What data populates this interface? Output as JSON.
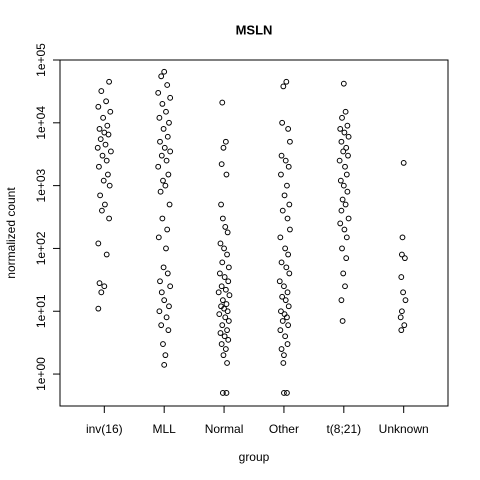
{
  "chart_data": {
    "type": "scatter",
    "title": "MSLN",
    "xlabel": "group",
    "ylabel": "normalized count",
    "log_y": true,
    "xlim": [
      0.26,
      6.74
    ],
    "xticks": [
      {
        "value": 1,
        "label": "inv(16)"
      },
      {
        "value": 2,
        "label": "MLL"
      },
      {
        "value": 3,
        "label": "Normal"
      },
      {
        "value": 4,
        "label": "Other"
      },
      {
        "value": 5,
        "label": "t(8;21)"
      },
      {
        "value": 6,
        "label": "Unknown"
      }
    ],
    "ylim": [
      0.31,
      100000
    ],
    "yticks": [
      {
        "value": 1,
        "label": "1e+00"
      },
      {
        "value": 10,
        "label": "1e+01"
      },
      {
        "value": 100,
        "label": "1e+02"
      },
      {
        "value": 1000,
        "label": "1e+03"
      },
      {
        "value": 10000,
        "label": "1e+04"
      },
      {
        "value": 100000,
        "label": "1e+05"
      }
    ],
    "color": "#000000",
    "x": [
      1.08,
      0.95,
      1.03,
      0.9,
      1.1,
      0.98,
      1.05,
      0.92,
      1.0,
      1.07,
      0.94,
      1.02,
      0.89,
      1.11,
      0.97,
      1.04,
      0.91,
      1.06,
      0.99,
      1.09,
      0.93,
      1.01,
      0.96,
      1.08,
      0.9,
      1.04,
      0.92,
      1.0,
      0.95,
      0.9,
      2.0,
      1.95,
      2.05,
      1.9,
      2.1,
      1.97,
      2.03,
      1.92,
      2.08,
      1.99,
      2.06,
      1.93,
      2.01,
      2.1,
      1.96,
      2.04,
      1.9,
      2.07,
      1.98,
      2.02,
      1.94,
      2.09,
      1.97,
      2.05,
      1.91,
      2.03,
      1.99,
      2.06,
      1.93,
      2.1,
      1.96,
      2.0,
      2.08,
      1.92,
      2.04,
      1.95,
      2.07,
      1.98,
      2.02,
      2.0,
      2.97,
      3.03,
      2.99,
      2.96,
      3.04,
      2.95,
      2.98,
      3.02,
      3.06,
      2.94,
      3.0,
      3.05,
      2.97,
      3.08,
      2.93,
      3.01,
      3.07,
      2.96,
      3.03,
      2.91,
      3.09,
      2.98,
      3.04,
      2.95,
      3.0,
      3.06,
      2.92,
      3.02,
      3.08,
      2.97,
      3.05,
      2.94,
      3.01,
      3.07,
      2.96,
      3.03,
      2.99,
      3.05,
      2.98,
      3.04,
      4.04,
      3.99,
      3.97,
      4.07,
      4.1,
      3.96,
      4.03,
      4.08,
      3.95,
      4.05,
      4.01,
      4.09,
      3.98,
      4.06,
      4.1,
      3.94,
      4.02,
      4.07,
      3.96,
      4.04,
      4.09,
      3.93,
      4.0,
      4.06,
      3.97,
      4.03,
      4.08,
      3.95,
      4.01,
      4.05,
      3.98,
      4.07,
      3.94,
      4.02,
      4.06,
      3.96,
      4.0,
      3.99,
      4.0,
      4.05,
      5.0,
      5.03,
      4.97,
      5.06,
      4.94,
      5.01,
      5.08,
      4.96,
      5.04,
      4.99,
      5.07,
      4.93,
      5.02,
      5.05,
      4.95,
      5.0,
      5.06,
      4.98,
      5.03,
      4.96,
      5.08,
      4.94,
      5.01,
      5.05,
      4.97,
      5.04,
      4.99,
      5.02,
      4.96,
      4.98,
      6.0,
      5.98,
      5.97,
      6.02,
      5.96,
      5.99,
      6.03,
      5.97,
      5.95,
      6.01,
      5.96
    ],
    "values": [
      45000,
      32000,
      22000,
      18000,
      15000,
      12000,
      9000,
      8000,
      7000,
      6500,
      5500,
      4500,
      4000,
      3500,
      3000,
      2500,
      2000,
      1500,
      1200,
      1000,
      700,
      500,
      400,
      300,
      120,
      80,
      28,
      25,
      20,
      11,
      65000,
      55000,
      40000,
      30000,
      25000,
      20000,
      15000,
      12000,
      10000,
      8000,
      6000,
      5000,
      4000,
      3500,
      3000,
      2500,
      2000,
      1500,
      1200,
      1000,
      800,
      500,
      300,
      200,
      150,
      100,
      50,
      40,
      30,
      25,
      20,
      15,
      12,
      10,
      8,
      6,
      5,
      3,
      2,
      1.4,
      21000,
      5000,
      4000,
      2200,
      1500,
      500,
      300,
      220,
      180,
      120,
      100,
      80,
      60,
      50,
      40,
      35,
      30,
      25,
      22,
      20,
      18,
      15,
      13,
      12,
      11,
      10,
      9,
      8,
      7,
      6,
      5,
      4.5,
      4,
      3.5,
      3,
      2.5,
      2,
      1.5,
      0.5,
      0.5,
      45000,
      38000,
      10000,
      8000,
      5000,
      3000,
      2500,
      2000,
      1500,
      1000,
      700,
      500,
      400,
      300,
      200,
      150,
      100,
      80,
      60,
      50,
      40,
      30,
      25,
      20,
      17,
      15,
      12,
      10,
      9,
      8,
      7,
      6,
      5,
      4,
      3,
      2.5,
      2,
      1.5,
      0.5,
      0.5,
      42000,
      15000,
      12000,
      9000,
      8000,
      7000,
      6000,
      5000,
      4000,
      3500,
      3000,
      2500,
      2000,
      1500,
      1200,
      1000,
      800,
      600,
      500,
      400,
      300,
      250,
      200,
      150,
      100,
      70,
      40,
      25,
      15,
      7,
      2300,
      150,
      80,
      70,
      35,
      20,
      15,
      10,
      8,
      6,
      5
    ]
  }
}
